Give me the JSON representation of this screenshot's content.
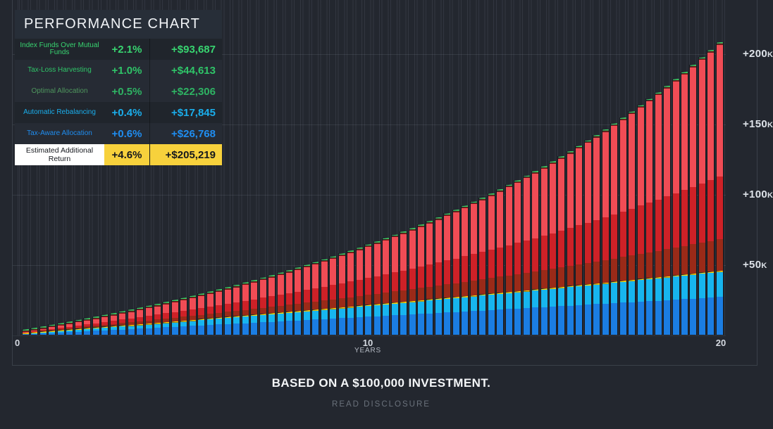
{
  "legend": {
    "title": "PERFORMANCE CHART",
    "rows": [
      {
        "label": "Index Funds Over Mutual Funds",
        "percent": "+2.1%",
        "amount": "+$93,687",
        "label_color": "#38d470",
        "value_color": "#38d470"
      },
      {
        "label": "Tax-Loss Harvesting",
        "percent": "+1.0%",
        "amount": "+$44,613",
        "label_color": "#2fc468",
        "value_color": "#2fc468"
      },
      {
        "label": "Optimal Allocation",
        "percent": "+0.5%",
        "amount": "+$22,306",
        "label_color": "#4f975e",
        "value_color": "#2eb363"
      },
      {
        "label": "Automatic Rebalancing",
        "percent": "+0.4%",
        "amount": "+$17,845",
        "label_color": "#1aaeec",
        "value_color": "#1aaeec"
      },
      {
        "label": "Tax-Aware Allocation",
        "percent": "+0.6%",
        "amount": "+$26,768",
        "label_color": "#1f8df0",
        "value_color": "#1f8df0"
      }
    ],
    "total": {
      "label": "Estimated Additional Return",
      "percent": "+4.6%",
      "amount": "+$205,219",
      "highlight_bg": "#f7d13c",
      "label_bg": "#ffffff"
    }
  },
  "chart_data": {
    "type": "bar",
    "stacked": true,
    "title": "PERFORMANCE CHART",
    "x_axis": {
      "label": "YEARS",
      "ticks": [
        "0",
        "10",
        "20"
      ],
      "range_years": [
        0,
        20
      ],
      "bars": 80,
      "interval": "quarterly"
    },
    "y_axis": {
      "range_dollars": [
        0,
        234000
      ],
      "ticks": [
        {
          "value": 50000,
          "label": "+50",
          "suffix": "K"
        },
        {
          "value": 100000,
          "label": "+100",
          "suffix": "K"
        },
        {
          "value": 150000,
          "label": "+150",
          "suffix": "K"
        },
        {
          "value": 200000,
          "label": "+200",
          "suffix": "K"
        }
      ],
      "gridlines": [
        50000,
        100000,
        150000,
        200000
      ]
    },
    "series": [
      {
        "name": "Tax-Aware Allocation",
        "final_value": 26768,
        "color": "#1b7de2",
        "growth_shape_q": 0.002
      },
      {
        "name": "Automatic Rebalancing",
        "final_value": 17845,
        "color": "#17b5ee",
        "growth_shape_q": 0.008,
        "cap_color": "#ffd60a"
      },
      {
        "name": "Optimal Allocation",
        "final_value": 22306,
        "color": "#9a2a18",
        "growth_shape_q": 0.02
      },
      {
        "name": "Tax-Loss Harvesting",
        "final_value": 44613,
        "color": "#ce2127",
        "growth_shape_q": 0.025
      },
      {
        "name": "Index Funds Over Mutual Funds",
        "final_value": 93687,
        "color": "#f04c55",
        "growth_shape_q": 0.03,
        "cap_color": "#3dd165",
        "cap_shadow": "#7e1d12"
      }
    ],
    "total_final_value": 205219,
    "estimated_totals_by_year": {
      "5": 28000,
      "10": 63000,
      "15": 112000,
      "20": 205219
    },
    "legend_position": "top-left",
    "grid": true
  },
  "footer": {
    "note": "BASED ON A $100,000 INVESTMENT.",
    "link": "READ DISCLOSURE"
  }
}
